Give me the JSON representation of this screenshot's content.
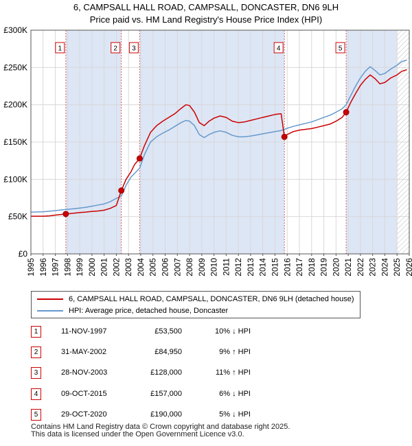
{
  "title": {
    "line1": "6, CAMPSALL HALL ROAD, CAMPSALL, DONCASTER, DN6 9LH",
    "line2": "Price paid vs. HM Land Registry's House Price Index (HPI)"
  },
  "chart_data": {
    "type": "line",
    "title": "6, CAMPSALL HALL ROAD, CAMPSALL, DONCASTER, DN6 9LH — Price paid vs. HM Land Registry's House Price Index (HPI)",
    "xlim": [
      1995,
      2026
    ],
    "ylim": [
      0,
      300000
    ],
    "x_ticks": [
      "1995",
      "1996",
      "1997",
      "1998",
      "1999",
      "2000",
      "2001",
      "2002",
      "2003",
      "2004",
      "2005",
      "2006",
      "2007",
      "2008",
      "2009",
      "2010",
      "2011",
      "2012",
      "2013",
      "2014",
      "2015",
      "2016",
      "2017",
      "2018",
      "2019",
      "2020",
      "2021",
      "2022",
      "2023",
      "2024",
      "2025",
      "2026"
    ],
    "y_ticks": [
      {
        "value": 0,
        "label": "£0"
      },
      {
        "value": 50000,
        "label": "£50K"
      },
      {
        "value": 100000,
        "label": "£100K"
      },
      {
        "value": 150000,
        "label": "£150K"
      },
      {
        "value": 200000,
        "label": "£200K"
      },
      {
        "value": 250000,
        "label": "£250K"
      },
      {
        "value": 300000,
        "label": "£300K"
      }
    ],
    "grid": true,
    "projection_from": 2025.0,
    "series": [
      {
        "name": "6, CAMPSALL HALL ROAD, CAMPSALL, DONCASTER, DN6 9LH (detached house)",
        "color": "#cc0000",
        "points": [
          [
            1995.0,
            50500
          ],
          [
            1996.0,
            50500
          ],
          [
            1996.5,
            51000
          ],
          [
            1997.0,
            52000
          ],
          [
            1997.86,
            53500
          ],
          [
            1998.5,
            54500
          ],
          [
            1999.0,
            55500
          ],
          [
            1999.5,
            56000
          ],
          [
            2000.0,
            57000
          ],
          [
            2000.5,
            57500
          ],
          [
            2001.0,
            58500
          ],
          [
            2001.5,
            61000
          ],
          [
            2002.0,
            65000
          ],
          [
            2002.41,
            84950
          ],
          [
            2002.8,
            100000
          ],
          [
            2003.2,
            110000
          ],
          [
            2003.5,
            120000
          ],
          [
            2003.91,
            128000
          ],
          [
            2004.3,
            145000
          ],
          [
            2004.8,
            163000
          ],
          [
            2005.3,
            172000
          ],
          [
            2005.8,
            178000
          ],
          [
            2006.3,
            183000
          ],
          [
            2006.8,
            188000
          ],
          [
            2007.3,
            195000
          ],
          [
            2007.7,
            200000
          ],
          [
            2008.0,
            199000
          ],
          [
            2008.4,
            190000
          ],
          [
            2008.8,
            176000
          ],
          [
            2009.2,
            172000
          ],
          [
            2009.6,
            178000
          ],
          [
            2010.0,
            182000
          ],
          [
            2010.5,
            185000
          ],
          [
            2011.0,
            183000
          ],
          [
            2011.5,
            178000
          ],
          [
            2012.0,
            176000
          ],
          [
            2012.5,
            177000
          ],
          [
            2013.0,
            179000
          ],
          [
            2013.5,
            181000
          ],
          [
            2014.0,
            183000
          ],
          [
            2014.5,
            185000
          ],
          [
            2015.0,
            187000
          ],
          [
            2015.5,
            188000
          ],
          [
            2015.77,
            157000
          ],
          [
            2016.0,
            160000
          ],
          [
            2016.5,
            164000
          ],
          [
            2017.0,
            166000
          ],
          [
            2017.5,
            167000
          ],
          [
            2018.0,
            168000
          ],
          [
            2018.5,
            170000
          ],
          [
            2019.0,
            172000
          ],
          [
            2019.5,
            174000
          ],
          [
            2020.0,
            178000
          ],
          [
            2020.5,
            183000
          ],
          [
            2020.83,
            190000
          ],
          [
            2021.2,
            203000
          ],
          [
            2021.6,
            215000
          ],
          [
            2022.0,
            226000
          ],
          [
            2022.4,
            234000
          ],
          [
            2022.8,
            240000
          ],
          [
            2023.2,
            235000
          ],
          [
            2023.6,
            228000
          ],
          [
            2024.0,
            230000
          ],
          [
            2024.5,
            236000
          ],
          [
            2025.0,
            240000
          ],
          [
            2025.4,
            245000
          ],
          [
            2025.8,
            247000
          ]
        ]
      },
      {
        "name": "HPI: Average price, detached house, Doncaster",
        "color": "#6699cc",
        "points": [
          [
            1995.0,
            56000
          ],
          [
            1996.0,
            56500
          ],
          [
            1997.0,
            58000
          ],
          [
            1997.86,
            59500
          ],
          [
            1998.5,
            60500
          ],
          [
            1999.0,
            61500
          ],
          [
            1999.5,
            62500
          ],
          [
            2000.0,
            64000
          ],
          [
            2000.5,
            65500
          ],
          [
            2001.0,
            67000
          ],
          [
            2001.5,
            70000
          ],
          [
            2002.0,
            74500
          ],
          [
            2002.41,
            77500
          ],
          [
            2002.8,
            92000
          ],
          [
            2003.2,
            103000
          ],
          [
            2003.5,
            108000
          ],
          [
            2003.91,
            115000
          ],
          [
            2004.3,
            133000
          ],
          [
            2004.8,
            150000
          ],
          [
            2005.3,
            157000
          ],
          [
            2005.8,
            162000
          ],
          [
            2006.3,
            166000
          ],
          [
            2006.8,
            171000
          ],
          [
            2007.3,
            176000
          ],
          [
            2007.7,
            179000
          ],
          [
            2008.0,
            178000
          ],
          [
            2008.4,
            172000
          ],
          [
            2008.8,
            160000
          ],
          [
            2009.2,
            156000
          ],
          [
            2009.6,
            160000
          ],
          [
            2010.0,
            163000
          ],
          [
            2010.5,
            165000
          ],
          [
            2011.0,
            163000
          ],
          [
            2011.5,
            159000
          ],
          [
            2012.0,
            157000
          ],
          [
            2012.5,
            157000
          ],
          [
            2013.0,
            158000
          ],
          [
            2013.5,
            159500
          ],
          [
            2014.0,
            161000
          ],
          [
            2014.5,
            162500
          ],
          [
            2015.0,
            164000
          ],
          [
            2015.5,
            165500
          ],
          [
            2015.77,
            167000
          ],
          [
            2016.0,
            168500
          ],
          [
            2016.5,
            171000
          ],
          [
            2017.0,
            173000
          ],
          [
            2017.5,
            175000
          ],
          [
            2018.0,
            177000
          ],
          [
            2018.5,
            180000
          ],
          [
            2019.0,
            183000
          ],
          [
            2019.5,
            186000
          ],
          [
            2020.0,
            190000
          ],
          [
            2020.5,
            194500
          ],
          [
            2020.83,
            200000
          ],
          [
            2021.2,
            212000
          ],
          [
            2021.6,
            225000
          ],
          [
            2022.0,
            236000
          ],
          [
            2022.4,
            245000
          ],
          [
            2022.8,
            251000
          ],
          [
            2023.2,
            246000
          ],
          [
            2023.6,
            240000
          ],
          [
            2024.0,
            242000
          ],
          [
            2024.5,
            248000
          ],
          [
            2025.0,
            253000
          ],
          [
            2025.4,
            258000
          ],
          [
            2025.8,
            260000
          ]
        ]
      }
    ],
    "sales": [
      {
        "label": "1",
        "x": 1997.86,
        "price": 53500
      },
      {
        "label": "2",
        "x": 2002.41,
        "price": 84950
      },
      {
        "label": "3",
        "x": 2003.91,
        "price": 128000
      },
      {
        "label": "4",
        "x": 2015.77,
        "price": 157000
      },
      {
        "label": "5",
        "x": 2020.83,
        "price": 190000
      }
    ],
    "highlight_color": "#dde6f5"
  },
  "legend": {
    "property": "6, CAMPSALL HALL ROAD, CAMPSALL, DONCASTER, DN6 9LH (detached house)",
    "hpi": "HPI: Average price, detached house, Doncaster",
    "property_color": "#cc0000",
    "hpi_color": "#6699cc"
  },
  "transactions": [
    {
      "num": "1",
      "date": "11-NOV-1997",
      "price": "£53,500",
      "hpi": "10% ↓ HPI"
    },
    {
      "num": "2",
      "date": "31-MAY-2002",
      "price": "£84,950",
      "hpi": "9% ↑ HPI"
    },
    {
      "num": "3",
      "date": "28-NOV-2003",
      "price": "£128,000",
      "hpi": "11% ↑ HPI"
    },
    {
      "num": "4",
      "date": "09-OCT-2015",
      "price": "£157,000",
      "hpi": "6% ↓ HPI"
    },
    {
      "num": "5",
      "date": "29-OCT-2020",
      "price": "£190,000",
      "hpi": "5% ↓ HPI"
    }
  ],
  "footer": {
    "line1": "Contains HM Land Registry data © Crown copyright and database right 2025.",
    "line2": "This data is licensed under the Open Government Licence v3.0."
  }
}
